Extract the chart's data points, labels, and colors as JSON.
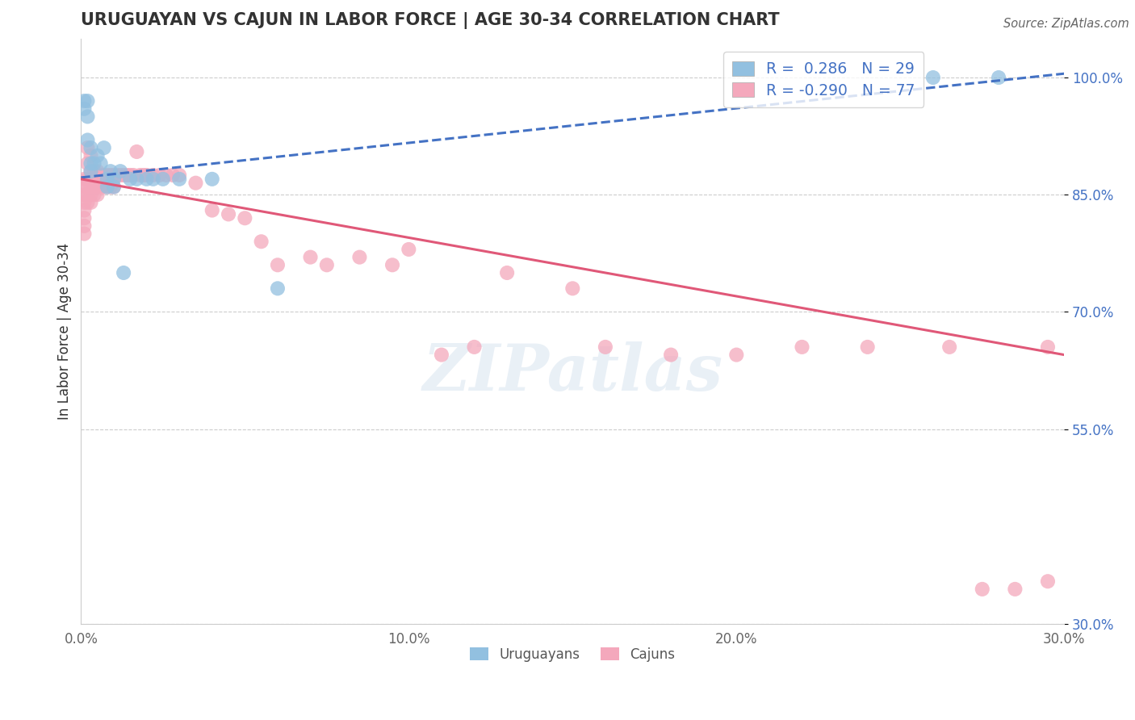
{
  "title": "URUGUAYAN VS CAJUN IN LABOR FORCE | AGE 30-34 CORRELATION CHART",
  "source": "Source: ZipAtlas.com",
  "ylabel": "In Labor Force | Age 30-34",
  "xlim": [
    0.0,
    0.3
  ],
  "ylim": [
    0.3,
    1.05
  ],
  "xticks": [
    0.0,
    0.05,
    0.1,
    0.15,
    0.2,
    0.25,
    0.3
  ],
  "xticklabels": [
    "0.0%",
    "",
    "10.0%",
    "",
    "20.0%",
    "",
    "30.0%"
  ],
  "yticks": [
    0.3,
    0.55,
    0.7,
    0.85,
    1.0
  ],
  "yticklabels": [
    "30.0%",
    "55.0%",
    "70.0%",
    "85.0%",
    "100.0%"
  ],
  "R_uruguayan": 0.286,
  "N_uruguayan": 29,
  "R_cajun": -0.29,
  "N_cajun": 77,
  "uruguayan_color": "#92c0e0",
  "cajun_color": "#f4a8bc",
  "uruguayan_line_color": "#4472c4",
  "cajun_line_color": "#e05878",
  "legend_uruguayan": "Uruguayans",
  "legend_cajun": "Cajuns",
  "uruguayan_trend": [
    0.872,
    1.005
  ],
  "cajun_trend": [
    0.87,
    0.645
  ],
  "uruguayan_x": [
    0.001,
    0.001,
    0.002,
    0.002,
    0.002,
    0.003,
    0.003,
    0.003,
    0.004,
    0.005,
    0.006,
    0.007,
    0.008,
    0.008,
    0.009,
    0.01,
    0.01,
    0.012,
    0.013,
    0.015,
    0.017,
    0.02,
    0.022,
    0.025,
    0.03,
    0.04,
    0.06,
    0.26,
    0.28
  ],
  "uruguayan_y": [
    0.97,
    0.96,
    0.97,
    0.95,
    0.92,
    0.91,
    0.89,
    0.88,
    0.89,
    0.9,
    0.89,
    0.91,
    0.87,
    0.86,
    0.88,
    0.87,
    0.86,
    0.88,
    0.75,
    0.87,
    0.87,
    0.87,
    0.87,
    0.87,
    0.87,
    0.87,
    0.73,
    1.0,
    1.0
  ],
  "cajun_x": [
    0.001,
    0.001,
    0.001,
    0.001,
    0.001,
    0.001,
    0.001,
    0.001,
    0.002,
    0.002,
    0.002,
    0.002,
    0.002,
    0.002,
    0.003,
    0.003,
    0.003,
    0.003,
    0.003,
    0.003,
    0.004,
    0.004,
    0.004,
    0.004,
    0.005,
    0.005,
    0.005,
    0.006,
    0.006,
    0.007,
    0.007,
    0.008,
    0.008,
    0.009,
    0.009,
    0.01,
    0.01,
    0.011,
    0.012,
    0.013,
    0.014,
    0.015,
    0.016,
    0.017,
    0.018,
    0.019,
    0.02,
    0.022,
    0.024,
    0.026,
    0.028,
    0.03,
    0.035,
    0.04,
    0.045,
    0.05,
    0.055,
    0.06,
    0.07,
    0.075,
    0.085,
    0.095,
    0.1,
    0.11,
    0.12,
    0.13,
    0.15,
    0.16,
    0.18,
    0.2,
    0.22,
    0.24,
    0.265,
    0.275,
    0.285,
    0.295,
    0.295
  ],
  "cajun_y": [
    0.87,
    0.86,
    0.85,
    0.84,
    0.83,
    0.82,
    0.81,
    0.8,
    0.91,
    0.89,
    0.87,
    0.86,
    0.85,
    0.84,
    0.9,
    0.88,
    0.87,
    0.86,
    0.85,
    0.84,
    0.88,
    0.87,
    0.86,
    0.85,
    0.88,
    0.86,
    0.85,
    0.875,
    0.86,
    0.875,
    0.86,
    0.875,
    0.86,
    0.875,
    0.86,
    0.875,
    0.86,
    0.875,
    0.875,
    0.875,
    0.875,
    0.875,
    0.875,
    0.905,
    0.875,
    0.875,
    0.875,
    0.875,
    0.875,
    0.875,
    0.875,
    0.875,
    0.865,
    0.83,
    0.825,
    0.82,
    0.79,
    0.76,
    0.77,
    0.76,
    0.77,
    0.76,
    0.78,
    0.645,
    0.655,
    0.75,
    0.73,
    0.655,
    0.645,
    0.645,
    0.655,
    0.655,
    0.655,
    0.345,
    0.345,
    0.355,
    0.655
  ]
}
